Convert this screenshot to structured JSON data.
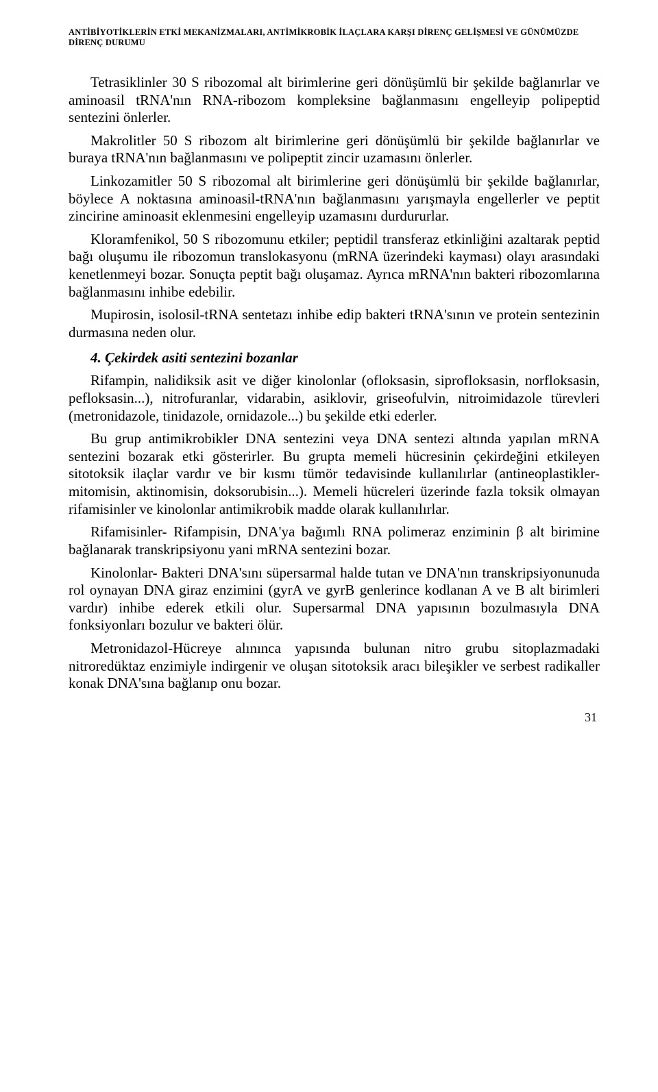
{
  "runningHead": "ANTİBİYOTİKLERİN ETKİ MEKANİZMALARI, ANTİMİKROBİK İLAÇLARA KARŞI DİRENÇ GELİŞMESİ VE GÜNÜMÜZDE DİRENÇ DURUMU",
  "paragraphs": {
    "p1": "Tetrasiklinler 30 S ribozomal alt birimlerine geri dönüşümlü bir şekilde bağlanırlar ve aminoasil tRNA'nın RNA-ribozom kompleksine bağlanmasını engelleyip polipeptid sentezini önlerler.",
    "p2": "Makrolitler 50 S ribozom alt birimlerine geri dönüşümlü bir şekilde bağlanırlar ve buraya tRNA'nın bağlanmasını ve polipeptit zincir uzamasını önlerler.",
    "p3": "Linkozamitler 50 S ribozomal alt birimlerine geri dönüşümlü bir şekilde bağlanırlar, böylece A noktasına aminoasil-tRNA'nın bağlanmasını yarışmayla engellerler ve peptit zincirine aminoasit eklenmesini engelleyip uzamasını durdururlar.",
    "p4": "Kloramfenikol, 50 S ribozomunu etkiler; peptidil transferaz etkinliğini azaltarak peptid bağı oluşumu ile ribozomun translokasyonu (mRNA üzerindeki kayması) olayı arasındaki kenetlenmeyi bozar. Sonuçta peptit bağı oluşamaz. Ayrıca mRNA'nın bakteri ribozomlarına bağlanmasını inhibe edebilir.",
    "p5": "Mupirosin, isolosil-tRNA sentetazı inhibe edip bakteri tRNA'sının ve protein sentezinin durmasına neden olur.",
    "p6": "Rifampin, nalidiksik asit ve diğer kinolonlar (ofloksasin, siprofloksasin, norfloksasin, pefloksasin...), nitrofuranlar, vidarabin, asiklovir, griseofulvin, nitroimidazole türevleri (metronidazole, tinidazole, ornidazole...) bu şekilde etki ederler.",
    "p7": "Bu grup antimikrobikler DNA sentezini veya DNA sentezi altında yapılan mRNA sentezini bozarak etki gösterirler. Bu grupta memeli hücresinin çekirdeğini etkileyen sitotoksik ilaçlar vardır ve bir kısmı tümör tedavisinde kullanılırlar (antineoplastikler-mitomisin, aktinomisin, doksorubisin...). Memeli hücreleri üzerinde fazla toksik olmayan rifamisinler ve kinolonlar antimikrobik madde olarak kullanılırlar.",
    "p8": "Rifamisinler- Rifampisin, DNA'ya bağımlı RNA polimeraz enziminin β alt birimine bağlanarak transkripsiyonu yani mRNA sentezini bozar.",
    "p9": "Kinolonlar- Bakteri DNA'sını süpersarmal halde tutan ve DNA'nın transkripsiyonunuda rol oynayan DNA giraz enzimini (gyrA ve gyrB genlerince kodlanan A ve B alt birimleri vardır) inhibe ederek etkili olur. Supersarmal DNA yapısının bozulmasıyla DNA fonksiyonları bozulur ve bakteri ölür.",
    "p10": "Metronidazol-Hücreye alınınca yapısında bulunan nitro grubu sitoplazmadaki nitroredüktaz enzimiyle indirgenir ve oluşan sitotoksik aracı bileşikler ve serbest radikaller konak DNA'sına bağlanıp onu bozar."
  },
  "subhead": "4. Çekirdek asiti sentezini bozanlar",
  "pageNumber": "31"
}
